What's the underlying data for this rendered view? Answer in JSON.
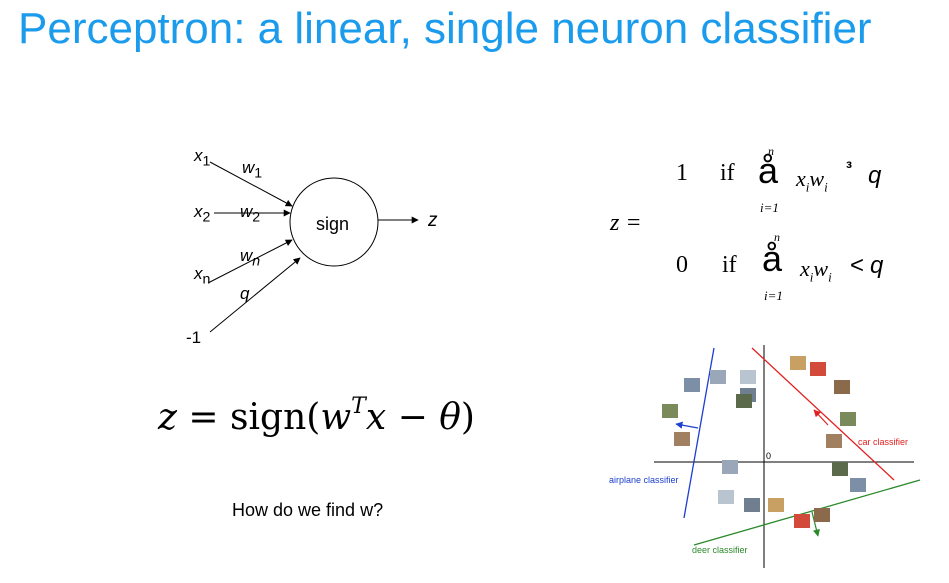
{
  "slide": {
    "title": "Perceptron: a linear, single neuron classifier"
  },
  "neuron_diagram": {
    "inputs": [
      {
        "label": "x",
        "sub": "1"
      },
      {
        "label": "x",
        "sub": "2"
      },
      {
        "label": "x",
        "sub": "n"
      },
      {
        "label": "-1",
        "sub": ""
      }
    ],
    "weights": [
      {
        "label": "w",
        "sub": "1"
      },
      {
        "label": "w",
        "sub": "2"
      },
      {
        "label": "w",
        "sub": "n"
      },
      {
        "label": "q",
        "sub": ""
      }
    ],
    "node_label": "sign",
    "output_label": "z"
  },
  "piecewise": {
    "lhs": "z =",
    "cases": [
      {
        "value": "1",
        "cond": "if",
        "sum_symbol": "å",
        "upper": "n",
        "lower": "i=1",
        "term_x": "x",
        "term_xi": "i",
        "term_w": "w",
        "term_wi": "i",
        "rel": "³",
        "threshold": "q"
      },
      {
        "value": "0",
        "cond": "if",
        "sum_symbol": "å",
        "upper": "n",
        "lower": "i=1",
        "term_x": "x",
        "term_xi": "i",
        "term_w": "w",
        "term_wi": "i",
        "rel": "<",
        "threshold": "q"
      }
    ]
  },
  "compact_formula": {
    "lhs": "z",
    "eq": "=",
    "fn": "sign(",
    "w": "w",
    "sup": "T",
    "x": "x",
    "minus": "−",
    "theta": "θ",
    "close": ")"
  },
  "question": "How do we find w?",
  "classifier_plot": {
    "origin_label": "0",
    "lines": [
      {
        "label": "car classifier",
        "color": "#e02020"
      },
      {
        "label": "airplane classifier",
        "color": "#1c3fd0"
      },
      {
        "label": "deer classifier",
        "color": "#2a8a2a"
      }
    ],
    "photo_colors": [
      "#7d8fa6",
      "#9aa7b8",
      "#b8c4cf",
      "#6f7f90",
      "#c9a064",
      "#d14a3a",
      "#8a6a4a",
      "#7a8a5a",
      "#a08060",
      "#5a6a4a"
    ]
  }
}
